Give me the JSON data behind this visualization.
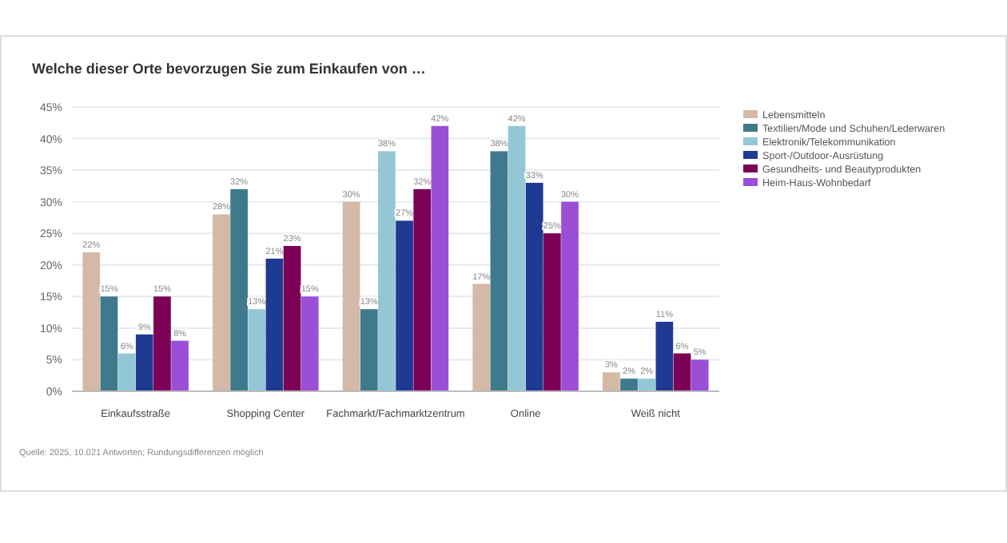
{
  "chart_data": {
    "type": "bar",
    "title": "Welche dieser Orte bevorzugen Sie zum Einkaufen von …",
    "categories": [
      "Einkaufsstraße",
      "Shopping Center",
      "Fachmarkt/Fachmarktzentrum",
      "Online",
      "Weiß nicht"
    ],
    "series": [
      {
        "name": "Lebensmitteln",
        "color": "#d3b9a6",
        "values": [
          22,
          28,
          30,
          17,
          3
        ],
        "value_labels": [
          "22%",
          "28%",
          "30%",
          "17%",
          "3%"
        ]
      },
      {
        "name": "Textilien/Mode und Schuhen/Lederwaren",
        "color": "#3f7a8c",
        "values": [
          15,
          32,
          13,
          38,
          2
        ],
        "value_labels": [
          "15%",
          "32%",
          "13%",
          "38%",
          "2%"
        ]
      },
      {
        "name": "Elektronik/Telekommunikation",
        "color": "#94c7d6",
        "values": [
          6,
          13,
          38,
          42,
          2
        ],
        "value_labels": [
          "6%",
          "13%",
          "38%",
          "42%",
          "2%"
        ]
      },
      {
        "name": "Sport-/Outdoor-Ausrüstung",
        "color": "#1f3a93",
        "values": [
          9,
          21,
          27,
          33,
          11
        ],
        "value_labels": [
          "9%",
          "21%",
          "27%",
          "33%",
          "11%"
        ]
      },
      {
        "name": "Gesundheits- und Beautyprodukten",
        "color": "#7b0056",
        "values": [
          15,
          23,
          32,
          25,
          6
        ],
        "value_labels": [
          "15%",
          "23%",
          "32%",
          "25%",
          "6%"
        ]
      },
      {
        "name": "Heim-Haus-Wohnbedarf",
        "color": "#9b4fd6",
        "values": [
          8,
          15,
          42,
          30,
          5
        ],
        "value_labels": [
          "8%",
          "15%",
          "42%",
          "30%",
          "5%"
        ]
      }
    ],
    "ylim": [
      0,
      45
    ],
    "yticks": [
      {
        "value": 0,
        "label": "0%"
      },
      {
        "value": 5,
        "label": "5%"
      },
      {
        "value": 10,
        "label": "10%"
      },
      {
        "value": 15,
        "label": "15%"
      },
      {
        "value": 20,
        "label": "20%"
      },
      {
        "value": 25,
        "label": "25%"
      },
      {
        "value": 30,
        "label": "30%"
      },
      {
        "value": 35,
        "label": "35%"
      },
      {
        "value": 40,
        "label": "40%"
      },
      {
        "value": 45,
        "label": "45%"
      }
    ],
    "grid": "y",
    "legend": "top right",
    "annotations": [
      "Quelle: 2025, 10.021 Antworten; Rundungsdifferenzen möglich"
    ]
  }
}
